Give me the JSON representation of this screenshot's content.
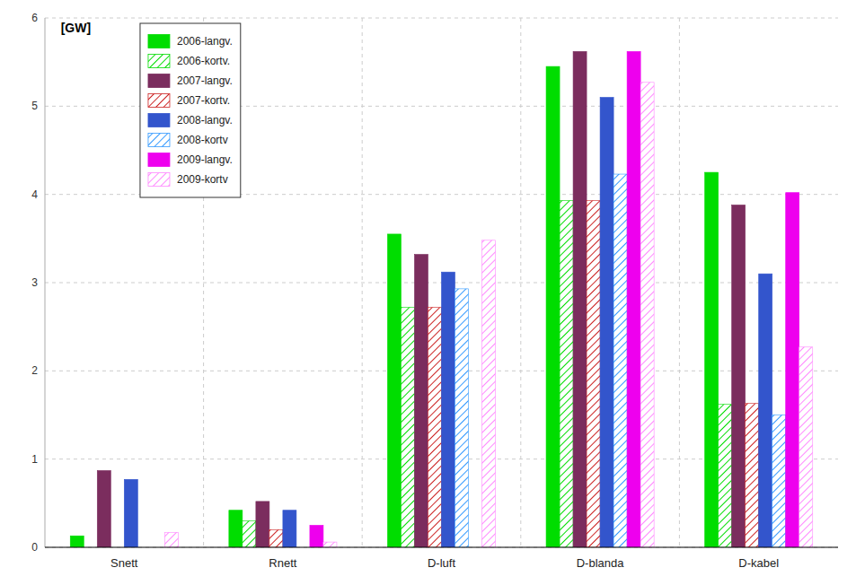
{
  "chart_data": {
    "type": "bar",
    "y_label": "[GW]",
    "categories": [
      "Snett",
      "Rnett",
      "D-luft",
      "D-blanda",
      "D-kabel"
    ],
    "series": [
      {
        "name": "2006-langv.",
        "color": "#00dd00",
        "values": [
          0.13,
          0.42,
          3.55,
          5.45,
          4.25
        ]
      },
      {
        "name": "2006-kortv.",
        "color": "#00dd00",
        "values": [
          0.0,
          0.3,
          2.72,
          3.93,
          1.62
        ]
      },
      {
        "name": "2007-langv.",
        "color": "#7b2d5e",
        "values": [
          0.87,
          0.52,
          3.32,
          5.62,
          3.88
        ]
      },
      {
        "name": "2007-kortv.",
        "color": "#cc2222",
        "values": [
          0.0,
          0.2,
          2.72,
          3.93,
          1.63
        ]
      },
      {
        "name": "2008-langv.",
        "color": "#3355cc",
        "values": [
          0.77,
          0.42,
          3.12,
          5.1,
          3.1
        ]
      },
      {
        "name": "2008-kortv",
        "color": "#3399ff",
        "values": [
          0.0,
          0.0,
          2.93,
          4.23,
          1.5
        ]
      },
      {
        "name": "2009-langv.",
        "color": "#ee00ee",
        "values": [
          0.0,
          0.25,
          0.0,
          5.62,
          4.02
        ]
      },
      {
        "name": "2009-kortv",
        "color": "#ff88ff",
        "values": [
          0.17,
          0.06,
          3.48,
          5.27,
          2.27
        ]
      }
    ],
    "ylim": [
      0,
      6
    ],
    "yticks": [
      0,
      1,
      2,
      3,
      4,
      5,
      6
    ],
    "grid": true,
    "legend": "upper left"
  }
}
